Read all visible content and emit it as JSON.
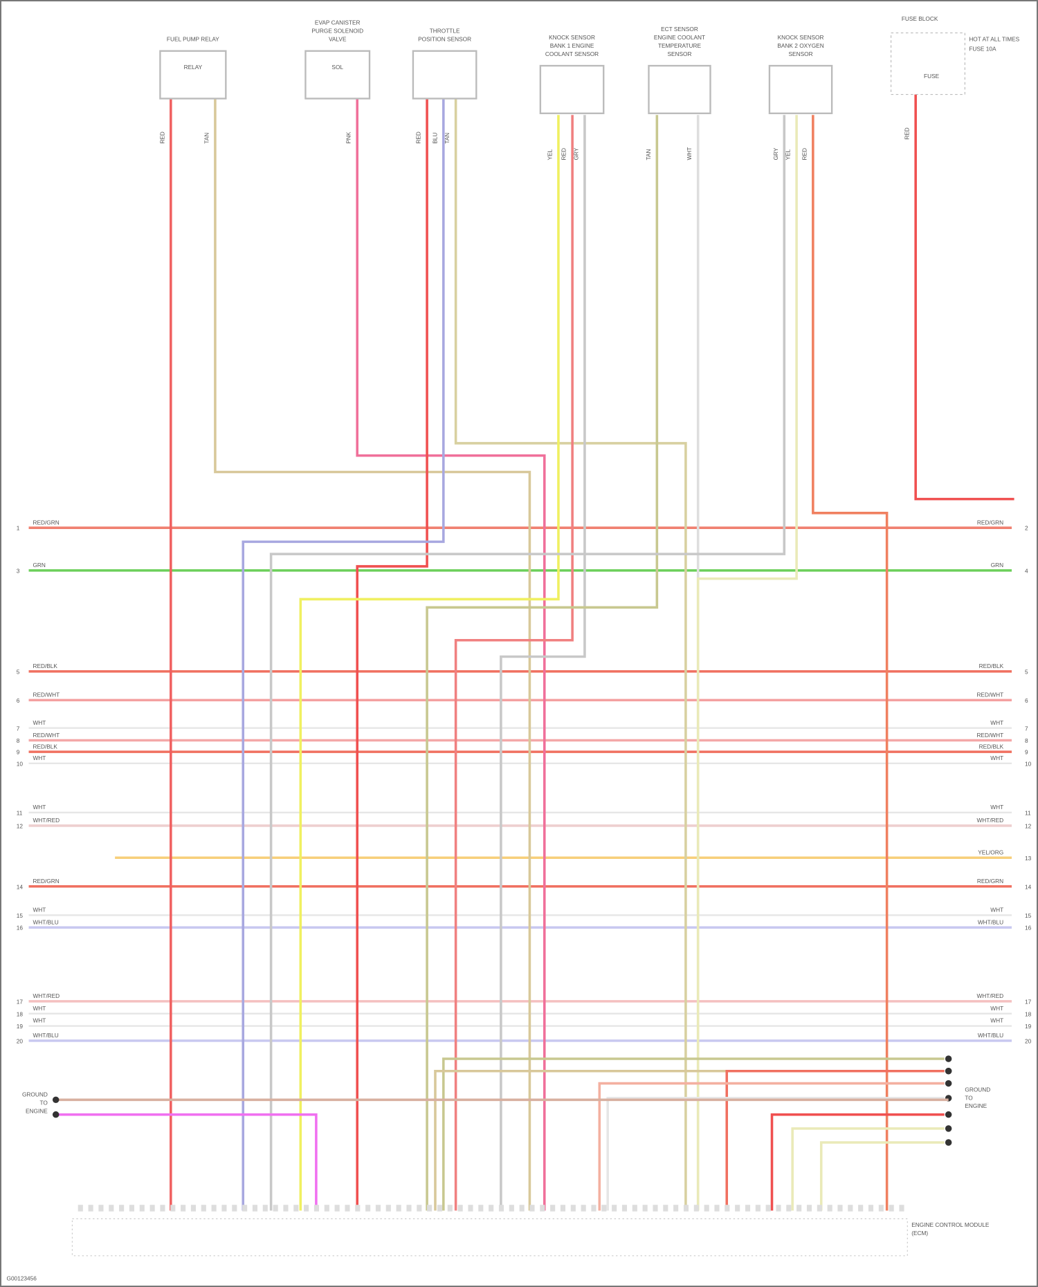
{
  "components": [
    {
      "label": "FUEL PUMP RELAY",
      "inner": "RELAY"
    },
    {
      "label": "EVAP CANISTER PURGE SOLENOID VALVE",
      "inner": "SOL"
    },
    {
      "label": "THROTTLE POSITION SENSOR",
      "inner": ""
    },
    {
      "label": "KNOCK SENSOR BANK 1 ENGINE COOLANT SENSOR",
      "inner": ""
    },
    {
      "label": "ECT SENSOR ENGINE COOLANT TEMPERATURE SENSOR",
      "inner": ""
    },
    {
      "label": "KNOCK SENSOR BANK 2 OXYGEN SENSOR",
      "inner": ""
    },
    {
      "label": "FUSE BLOCK",
      "inner": "FUSE"
    }
  ],
  "fuse_labels": [
    "HOT AT ALL TIMES",
    "FUSE 10A"
  ],
  "buses": [
    {
      "left": "RED/GRN",
      "right": "RED/GRN",
      "ln": "1",
      "rn": "2",
      "color": "#f08070"
    },
    {
      "left": "GRN",
      "right": "GRN",
      "ln": "3",
      "rn": "4",
      "color": "#6ccf5a"
    },
    {
      "left": "RED/BLK",
      "right": "RED/BLK",
      "ln": "5",
      "rn": "5",
      "color": "#f07060"
    },
    {
      "left": "RED/WHT",
      "right": "RED/WHT",
      "ln": "6",
      "rn": "6",
      "color": "#f4a0a0"
    },
    {
      "left": "WHT",
      "right": "WHT",
      "ln": "7",
      "rn": "7",
      "color": "#e6e6e6"
    },
    {
      "left": "RED/WHT",
      "right": "RED/WHT",
      "ln": "8",
      "rn": "8",
      "color": "#f4a8a8"
    },
    {
      "left": "RED/BLK",
      "right": "RED/BLK",
      "ln": "9",
      "rn": "9",
      "color": "#f07060"
    },
    {
      "left": "WHT",
      "right": "WHT",
      "ln": "10",
      "rn": "10",
      "color": "#e6e6e6"
    },
    {
      "left": "WHT",
      "right": "WHT",
      "ln": "11",
      "rn": "11",
      "color": "#e6e6e6"
    },
    {
      "left": "WHT/RED",
      "right": "WHT/RED",
      "ln": "12",
      "rn": "12",
      "color": "#eecfcf"
    },
    {
      "left": "",
      "right": "YEL/ORG",
      "ln": "",
      "rn": "13",
      "color": "#f7cf7a"
    },
    {
      "left": "RED/GRN",
      "right": "RED/GRN",
      "ln": "14",
      "rn": "14",
      "color": "#f07060"
    },
    {
      "left": "WHT",
      "right": "WHT",
      "ln": "15",
      "rn": "15",
      "color": "#e6e6e6"
    },
    {
      "left": "WHT/BLU",
      "right": "WHT/BLU",
      "ln": "16",
      "rn": "16",
      "color": "#c8c8f0"
    },
    {
      "left": "WHT/RED",
      "right": "WHT/RED",
      "ln": "17",
      "rn": "17",
      "color": "#f4c0c0"
    },
    {
      "left": "WHT",
      "right": "WHT",
      "ln": "18",
      "rn": "18",
      "color": "#e6e6e6"
    },
    {
      "left": "WHT",
      "right": "WHT",
      "ln": "19",
      "rn": "19",
      "color": "#e6e6e6"
    },
    {
      "left": "WHT/BLU",
      "right": "WHT/BLU",
      "ln": "20",
      "rn": "20",
      "color": "#c8c8f0"
    }
  ],
  "wires": [
    {
      "label": "RED",
      "color": "#f06060"
    },
    {
      "label": "TAN",
      "color": "#d8c89a"
    },
    {
      "label": "PNK",
      "color": "#f0709a"
    },
    {
      "label": "RED",
      "color": "#f05050"
    },
    {
      "label": "BLU",
      "color": "#a8a8e0"
    },
    {
      "label": "TAN",
      "color": "#d8d0a0"
    },
    {
      "label": "YEL",
      "color": "#f0f060"
    },
    {
      "label": "RED",
      "color": "#f08080"
    },
    {
      "label": "GRY",
      "color": "#c8c8c8"
    },
    {
      "label": "TAN",
      "color": "#c8c890"
    },
    {
      "label": "WHT",
      "color": "#dedede"
    },
    {
      "label": "GRY",
      "color": "#c8c8c8"
    },
    {
      "label": "YEL",
      "color": "#eaeab8"
    },
    {
      "label": "RED",
      "color": "#f08060"
    },
    {
      "label": "RED",
      "color": "#f05050"
    }
  ],
  "ground_left": [
    "GROUND",
    "TO",
    "ENGINE"
  ],
  "ground_right": [
    "GROUND",
    "TO",
    "ENGINE"
  ],
  "ecm_label": [
    "ENGINE CONTROL MODULE",
    "(ECM)"
  ],
  "footer": "G00123456"
}
